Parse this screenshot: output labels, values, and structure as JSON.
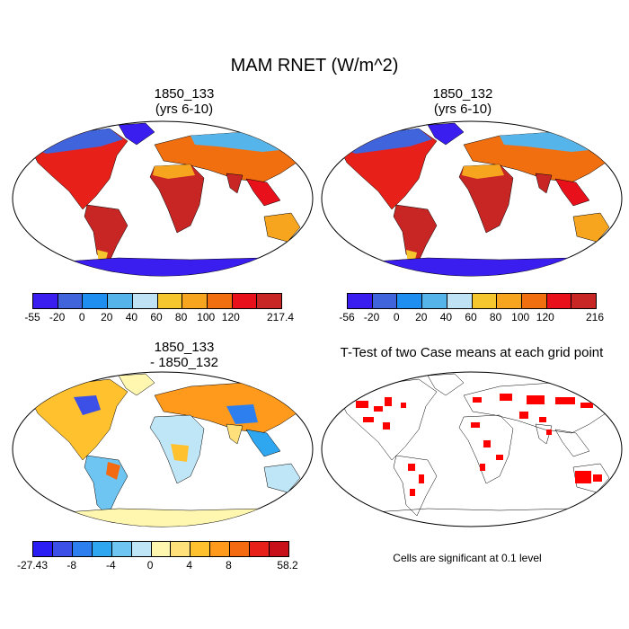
{
  "title": "MAM RNET (W/m^2)",
  "panels": [
    {
      "title_l1": "1850_133",
      "title_l2": "(yrs 6-10)"
    },
    {
      "title_l1": "1850_132",
      "title_l2": "(yrs 6-10)"
    },
    {
      "title_l1": "1850_133",
      "title_l2": "- 1850_132"
    },
    {
      "title_l1": "T-Test of two Case means at each grid point",
      "title_l2": ""
    }
  ],
  "colorbars": [
    {
      "labels": [
        "-55",
        "-20",
        "0",
        "20",
        "40",
        "60",
        "80",
        "100",
        "120",
        "217.4"
      ],
      "colors": [
        "#3a1ef0",
        "#3f64dc",
        "#1e8ef0",
        "#55b4ea",
        "#bfe3f5",
        "#f6c62e",
        "#f7a51e",
        "#f26f10",
        "#e8101a",
        "#c82525"
      ]
    },
    {
      "labels": [
        "-56",
        "-20",
        "0",
        "20",
        "40",
        "60",
        "80",
        "100",
        "120",
        "216"
      ],
      "colors": [
        "#3a1ef0",
        "#3f64dc",
        "#1e8ef0",
        "#55b4ea",
        "#bfe3f5",
        "#f6c62e",
        "#f7a51e",
        "#f26f10",
        "#e8101a",
        "#c82525"
      ]
    },
    {
      "labels": [
        "-27.43",
        "-8",
        "-4",
        "0",
        "4",
        "8",
        "58.2"
      ],
      "colors": [
        "#2a1ef5",
        "#3c4fe6",
        "#2d7ff0",
        "#2fa6f0",
        "#6fc5f2",
        "#bfe6f7",
        "#fff7b0",
        "#ffe07a",
        "#ffc12e",
        "#ff9a1c",
        "#f36a10",
        "#e8201a",
        "#c8101a"
      ]
    }
  ],
  "significance_note": "Cells are significant at 0.1 level"
}
